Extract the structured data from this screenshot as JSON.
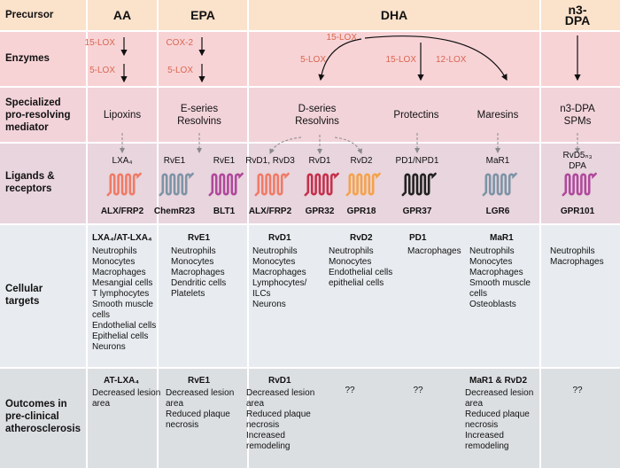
{
  "rows": {
    "precursor": "Precursor",
    "enzymes": "Enzymes",
    "mediator": "Specialized\npro-resolving\nmediator",
    "ligands": "Ligands &\nreceptors",
    "targets": "Cellular\ntargets",
    "outcomes": "Outcomes in\npre-clinical\natherosclerosis"
  },
  "precursors": [
    "AA",
    "EPA",
    "DHA",
    "n3-DPA"
  ],
  "enzymes": [
    "15-LOX",
    "5-LOX",
    "COX-2",
    "5-LOX",
    "15-LOX",
    "5-LOX",
    "15-LOX",
    "12-LOX"
  ],
  "mediators": [
    "Lipoxins",
    "E-series\nResolvins",
    "D-series\nResolvins",
    "Protectins",
    "Maresins",
    "n3-DPA SPMs"
  ],
  "ligands": [
    {
      "ligand": "LXA₄",
      "receptor": "ALX/FRP2",
      "color": "#f07a66"
    },
    {
      "ligand": "RvE1",
      "receptor": "ChemR23",
      "color": "#7d93a6"
    },
    {
      "ligand": "RvE1",
      "receptor": "BLT1",
      "color": "#b0489c"
    },
    {
      "ligand": "RvD1, RvD3",
      "receptor": "ALX/FRP2",
      "color": "#f07a66"
    },
    {
      "ligand": "RvD1",
      "receptor": "GPR32",
      "color": "#c62f4c"
    },
    {
      "ligand": "RvD2",
      "receptor": "GPR18",
      "color": "#f5a24a"
    },
    {
      "ligand": "PD1/NPD1",
      "receptor": "GPR37",
      "color": "#222222"
    },
    {
      "ligand": "MaR1",
      "receptor": "LGR6",
      "color": "#7d93a6"
    },
    {
      "ligand": "RvD5ₙ₃ DPA",
      "receptor": "GPR101",
      "color": "#b0489c"
    }
  ],
  "targets": [
    {
      "heading": "LXA₄/AT-LXA₄",
      "cells": [
        "Neutrophils",
        "Monocytes",
        "Macrophages",
        "Mesangial cells",
        "T lymphocytes",
        "Smooth muscle\ncells",
        "Endothelial cells",
        "Epithelial cells",
        "Neurons"
      ]
    },
    {
      "heading": "RvE1",
      "cells": [
        "Neutrophils",
        "Monocytes",
        "Macrophages",
        "Dendritic cells",
        "Platelets"
      ]
    },
    {
      "heading": "RvD1",
      "cells": [
        "Neutrophils",
        "Monocytes",
        "Macrophages",
        "Lymphocytes/\nILCs",
        "Neurons"
      ]
    },
    {
      "heading": "RvD2",
      "cells": [
        "Neutrophils",
        "Monocytes",
        "Endothelial cells",
        "epithelial cells"
      ]
    },
    {
      "heading": "PD1",
      "cells": [
        "Macrophages"
      ]
    },
    {
      "heading": "MaR1",
      "cells": [
        "Neutrophils",
        "Monocytes",
        "Macrophages",
        "Smooth muscle\ncells",
        "Osteoblasts"
      ]
    },
    {
      "cells": [
        "Neutrophils",
        "Macrophages"
      ]
    }
  ],
  "outcomes": [
    {
      "heading": "AT-LXA₄",
      "items": [
        "Decreased lesion\narea"
      ]
    },
    {
      "heading": "RvE1",
      "items": [
        "Decreased lesion\narea",
        "Reduced plaque\nnecrosis"
      ]
    },
    {
      "heading": "RvD1",
      "items": [
        "Decreased lesion\narea",
        "Reduced plaque\nnecrosis",
        "Increased\nremodeling"
      ]
    },
    {
      "items": [
        "??"
      ]
    },
    {
      "items": [
        "??"
      ]
    },
    {
      "heading": "MaR1 & RvD2",
      "items": [
        "Decreased lesion\narea",
        "Reduced plaque\nnecrosis",
        "Increased\nremodeling"
      ]
    },
    {
      "items": [
        "??"
      ]
    }
  ]
}
